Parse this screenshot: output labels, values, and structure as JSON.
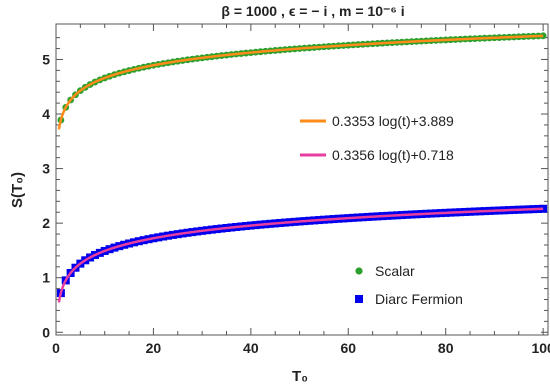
{
  "chart_data": {
    "type": "scatter",
    "title": "β = 1000  ,  ϵ = − i  ,  m = 10⁻⁶ i",
    "xlabel": "T₀",
    "ylabel": "S(T₀)",
    "xlim": [
      0,
      101
    ],
    "ylim": [
      -0.05,
      5.65
    ],
    "xticks": [
      0,
      20,
      40,
      60,
      80,
      100
    ],
    "yticks": [
      0,
      1,
      2,
      3,
      4,
      5
    ],
    "grid": false,
    "colors": {
      "scalar": "#2ca02c",
      "fermion": "#0000ee",
      "fit_scalar": "#ff8c1a",
      "fit_fermion": "#e83e9f"
    },
    "scatter_series": [
      {
        "name": "Scalar",
        "marker": "circle",
        "color": "#2ca02c",
        "intercept": 3.889,
        "slope": 0.3353,
        "x_start": 1,
        "x_end": 100,
        "step": 1
      },
      {
        "name": "Diarc Fermion",
        "marker": "square",
        "color": "#0000ee",
        "intercept": 0.718,
        "slope": 0.3356,
        "x_start": 1,
        "x_end": 100,
        "step": 1
      }
    ],
    "fit_series": [
      {
        "name": "0.3353 log(t)+3.889",
        "color": "#ff8c1a",
        "slope": 0.3353,
        "intercept": 3.889,
        "x_start": 0.6,
        "x_end": 100
      },
      {
        "name": "0.3356 log(t)+0.718",
        "color": "#e83e9f",
        "slope": 0.3356,
        "intercept": 0.718,
        "x_start": 0.6,
        "x_end": 100
      }
    ],
    "legend_fits_placement": "right-middle",
    "legend_points_placement": "bottom-right"
  }
}
